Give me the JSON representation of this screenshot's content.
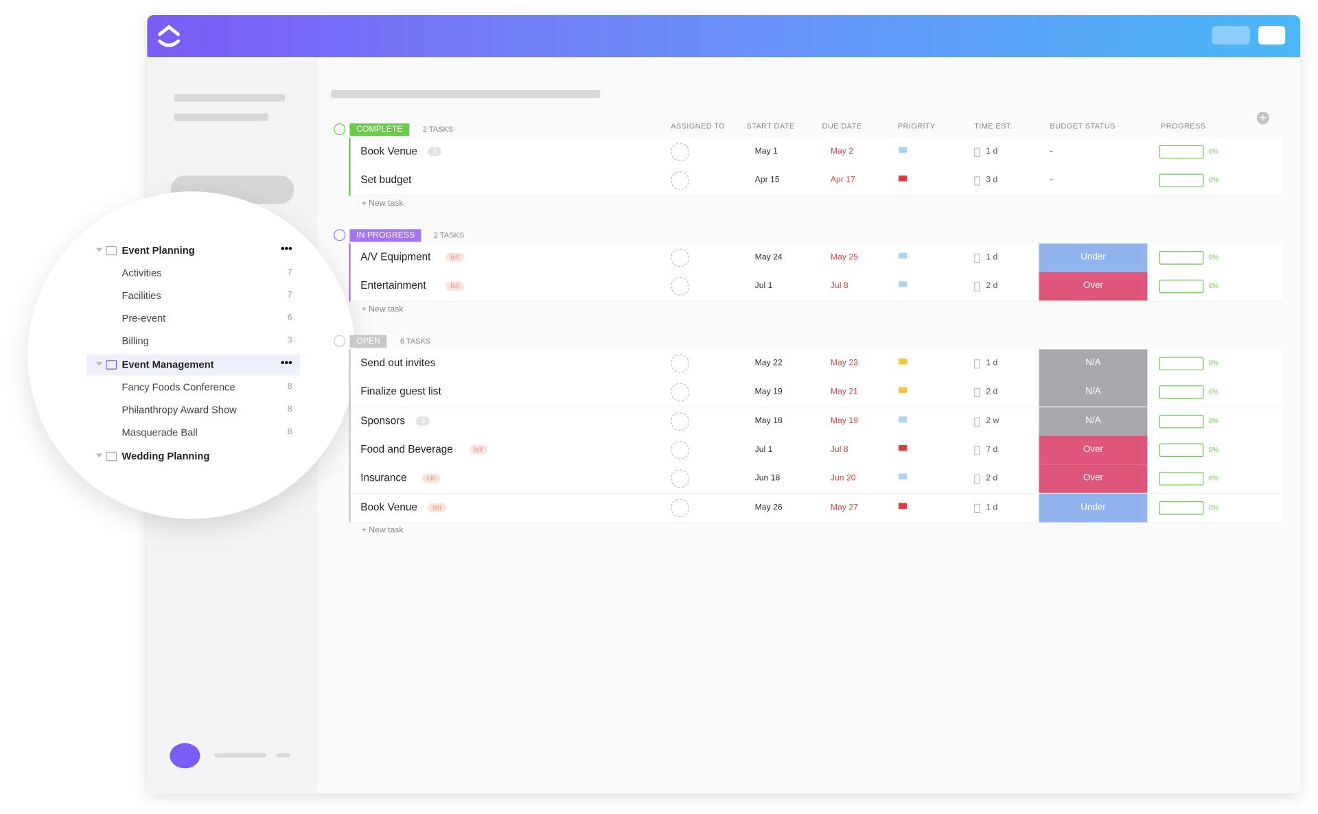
{
  "sidebar": {
    "folders": [
      {
        "name": "Event Planning",
        "lists": [
          {
            "name": "Activities",
            "count": "7"
          },
          {
            "name": "Facilities",
            "count": "7"
          },
          {
            "name": "Pre-event",
            "count": "6"
          },
          {
            "name": "Billing",
            "count": "3"
          }
        ]
      },
      {
        "name": "Event Management",
        "selected": true,
        "lists": [
          {
            "name": "Fancy Foods Conference",
            "count": "8"
          },
          {
            "name": "Philanthropy Award Show",
            "count": "8"
          },
          {
            "name": "Masquerade Ball",
            "count": "8"
          }
        ]
      },
      {
        "name": "Wedding Planning",
        "lists": []
      }
    ]
  },
  "columns": [
    "ASSIGNED TO",
    "START DATE",
    "DUE DATE",
    "PRIORITY",
    "TIME EST.",
    "BUDGET STATUS",
    "PROGRESS"
  ],
  "groups": [
    {
      "status": "COMPLETE",
      "color": "#6bc950",
      "count_label": "2 TASKS",
      "new_task": "+ New task",
      "tasks": [
        {
          "name": "Book Venue",
          "tag": "3",
          "tag_color": "#e3e3e3",
          "start": "May 1",
          "due": "May 2",
          "priority_color": "#a8d4f5",
          "time": "1 d",
          "budget": "-",
          "progress": "0%"
        },
        {
          "name": "Set budget",
          "start": "Apr 15",
          "due": "Apr 17",
          "priority_color": "#e03b3b",
          "time": "3 d",
          "budget": "-",
          "progress": "0%"
        }
      ]
    },
    {
      "status": "IN PROGRESS",
      "color": "#a875f0",
      "count_label": "2 TASKS",
      "new_task": "+ New task",
      "tasks": [
        {
          "name": "A/V Equipment",
          "tag": "bill",
          "tag_color": "#fbe3df",
          "start": "May 24",
          "due": "May 25",
          "priority_color": "#a8d4f5",
          "time": "1 d",
          "budget": "Under",
          "budget_color": "#8fb4ee",
          "progress": "0%"
        },
        {
          "name": "Entertainment",
          "tag": "bill",
          "tag_color": "#fbe3df",
          "start": "Jul 1",
          "due": "Jul 8",
          "priority_color": "#a8d4f5",
          "time": "2 d",
          "budget": "Over",
          "budget_color": "#e0557a",
          "progress": "0%"
        }
      ]
    },
    {
      "status": "OPEN",
      "color": "#c8c8c8",
      "count_label": "6 TASKS",
      "new_task": "+ New task",
      "tasks": [
        {
          "name": "Send out invites",
          "start": "May 22",
          "due": "May 23",
          "priority_color": "#f5c63c",
          "time": "1 d",
          "budget": "N/A",
          "budget_color": "#a7a9ad",
          "progress": "0%"
        },
        {
          "name": "Finalize guest list",
          "start": "May 19",
          "due": "May 21",
          "priority_color": "#f5c63c",
          "time": "2 d",
          "budget": "N/A",
          "budget_color": "#a7a9ad",
          "progress": "0%"
        },
        {
          "name": "Sponsors",
          "tag": "3",
          "tag_color": "#e3e3e3",
          "start": "May 18",
          "due": "May 19",
          "priority_color": "#a8d4f5",
          "time": "2 w",
          "budget": "N/A",
          "budget_color": "#a7a9ad",
          "progress": "0%"
        },
        {
          "name": "Food and Beverage",
          "tag": "bill",
          "tag_color": "#fbe3df",
          "start": "Jul 1",
          "due": "Jul 8",
          "priority_color": "#e03b3b",
          "time": "7 d",
          "budget": "Over",
          "budget_color": "#e0557a",
          "progress": "0%"
        },
        {
          "name": "Insurance",
          "tag": "bill",
          "tag_color": "#fbe3df",
          "start": "Jun 18",
          "due": "Jun 20",
          "priority_color": "#a8d4f5",
          "time": "2 d",
          "budget": "Over",
          "budget_color": "#e0557a",
          "progress": "0%"
        },
        {
          "name": "Book Venue",
          "tag": "bill",
          "tag_color": "#fbe3df",
          "start": "May 26",
          "due": "May 27",
          "priority_color": "#e03b3b",
          "time": "1 d",
          "budget": "Under",
          "budget_color": "#8fb4ee",
          "progress": "0%"
        }
      ]
    }
  ]
}
